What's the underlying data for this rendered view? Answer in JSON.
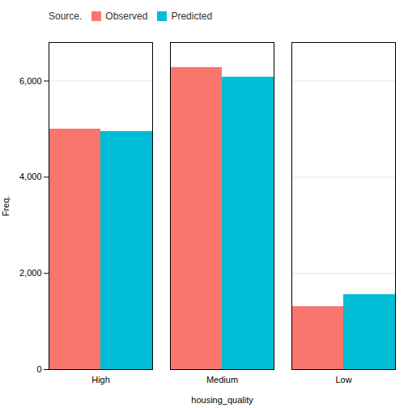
{
  "chart_data": {
    "type": "bar",
    "categories": [
      "High",
      "Medium",
      "Low"
    ],
    "series": [
      {
        "name": "Observed",
        "color": "#F8766D",
        "values": [
          5000,
          6280,
          1310
        ]
      },
      {
        "name": "Predicted",
        "color": "#00BCD4",
        "values": [
          4950,
          6080,
          1560
        ]
      }
    ],
    "xlabel": "housing_quality",
    "ylabel": "Freq.",
    "legend_title": "Source.",
    "legend": "top left",
    "ylim": [
      0,
      6800
    ],
    "yticks": [
      0,
      {
        "value": 2000,
        "label": "2,000"
      },
      {
        "value": 4000,
        "label": "4,000"
      },
      {
        "value": 6000,
        "label": "6,000"
      }
    ],
    "grid": true
  }
}
